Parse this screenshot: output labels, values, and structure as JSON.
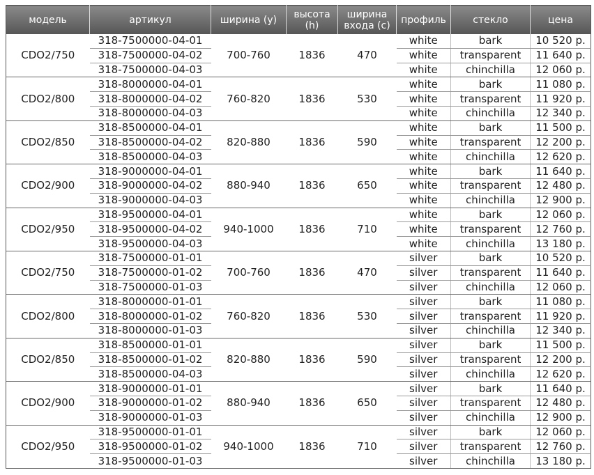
{
  "header": {
    "columns": [
      "модель",
      "артикул",
      "ширина (y)",
      "высота\n(h)",
      "ширина\nвхода (c)",
      "профиль",
      "стекло",
      "цена"
    ]
  },
  "table": {
    "groups": [
      {
        "model": "CDO2/750",
        "width": "700-760",
        "height": "1836",
        "entry": "470",
        "rows": [
          {
            "article": "318-7500000-04-01",
            "profile": "white",
            "glass": "bark",
            "price": "10 520 р."
          },
          {
            "article": "318-7500000-04-02",
            "profile": "white",
            "glass": "transparent",
            "price": "11 640 р."
          },
          {
            "article": "318-7500000-04-03",
            "profile": "white",
            "glass": "chinchilla",
            "price": "12 060 р."
          }
        ]
      },
      {
        "model": "CDO2/800",
        "width": "760-820",
        "height": "1836",
        "entry": "530",
        "rows": [
          {
            "article": "318-8000000-04-01",
            "profile": "white",
            "glass": "bark",
            "price": "11 080 р."
          },
          {
            "article": "318-8000000-04-02",
            "profile": "white",
            "glass": "transparent",
            "price": "11 920 р."
          },
          {
            "article": "318-8000000-04-03",
            "profile": "white",
            "glass": "chinchilla",
            "price": "12 340 р."
          }
        ]
      },
      {
        "model": "CDO2/850",
        "width": "820-880",
        "height": "1836",
        "entry": "590",
        "rows": [
          {
            "article": "318-8500000-04-01",
            "profile": "white",
            "glass": "bark",
            "price": "11 500 р."
          },
          {
            "article": "318-8500000-04-02",
            "profile": "white",
            "glass": "transparent",
            "price": "12 200 р."
          },
          {
            "article": "318-8500000-04-03",
            "profile": "white",
            "glass": "chinchilla",
            "price": "12 620 р."
          }
        ]
      },
      {
        "model": "CDO2/900",
        "width": "880-940",
        "height": "1836",
        "entry": "650",
        "rows": [
          {
            "article": "318-9000000-04-01",
            "profile": "white",
            "glass": "bark",
            "price": "11 640 р."
          },
          {
            "article": "318-9000000-04-02",
            "profile": "white",
            "glass": "transparent",
            "price": "12 480 р."
          },
          {
            "article": "318-9000000-04-03",
            "profile": "white",
            "glass": "chinchilla",
            "price": "12 900 р."
          }
        ]
      },
      {
        "model": "CDO2/950",
        "width": "940-1000",
        "height": "1836",
        "entry": "710",
        "rows": [
          {
            "article": "318-9500000-04-01",
            "profile": "white",
            "glass": "bark",
            "price": "12 060 р."
          },
          {
            "article": "318-9500000-04-02",
            "profile": "white",
            "glass": "transparent",
            "price": "12 760 р."
          },
          {
            "article": "318-9500000-04-03",
            "profile": "white",
            "glass": "chinchilla",
            "price": "13 180 р."
          }
        ]
      },
      {
        "model": "CDO2/750",
        "width": "700-760",
        "height": "1836",
        "entry": "470",
        "rows": [
          {
            "article": "318-7500000-01-01",
            "profile": "silver",
            "glass": "bark",
            "price": "10 520 р."
          },
          {
            "article": "318-7500000-01-02",
            "profile": "silver",
            "glass": "transparent",
            "price": "11 640 р."
          },
          {
            "article": "318-7500000-01-03",
            "profile": "silver",
            "glass": "chinchilla",
            "price": "12 060 р."
          }
        ]
      },
      {
        "model": "CDO2/800",
        "width": "760-820",
        "height": "1836",
        "entry": "530",
        "rows": [
          {
            "article": "318-8000000-01-01",
            "profile": "silver",
            "glass": "bark",
            "price": "11 080 р."
          },
          {
            "article": "318-8000000-01-02",
            "profile": "silver",
            "glass": "transparent",
            "price": "11 920 р."
          },
          {
            "article": "318-8000000-01-03",
            "profile": "silver",
            "glass": "chinchilla",
            "price": "12 340 р."
          }
        ]
      },
      {
        "model": "CDO2/850",
        "width": "820-880",
        "height": "1836",
        "entry": "590",
        "rows": [
          {
            "article": "318-8500000-01-01",
            "profile": "silver",
            "glass": "bark",
            "price": "11 500 р."
          },
          {
            "article": "318-8500000-01-02",
            "profile": "silver",
            "glass": "transparent",
            "price": "12 200 р."
          },
          {
            "article": "318-8500000-04-03",
            "profile": "silver",
            "glass": "chinchilla",
            "price": "12 620 р."
          }
        ]
      },
      {
        "model": "CDO2/900",
        "width": "880-940",
        "height": "1836",
        "entry": "650",
        "rows": [
          {
            "article": "318-9000000-01-01",
            "profile": "silver",
            "glass": "bark",
            "price": "11 640 р."
          },
          {
            "article": "318-9000000-01-02",
            "profile": "silver",
            "glass": "transparent",
            "price": "12 480 р."
          },
          {
            "article": "318-9000000-01-03",
            "profile": "silver",
            "glass": "chinchilla",
            "price": "12 900 р."
          }
        ]
      },
      {
        "model": "CDO2/950",
        "width": "940-1000",
        "height": "1836",
        "entry": "710",
        "rows": [
          {
            "article": "318-9500000-01-01",
            "profile": "silver",
            "glass": "bark",
            "price": "12 060 р."
          },
          {
            "article": "318-9500000-01-02",
            "profile": "silver",
            "glass": "transparent",
            "price": "12 760 р."
          },
          {
            "article": "318-9500000-01-03",
            "profile": "silver",
            "glass": "chinchilla",
            "price": "13 180 р."
          }
        ]
      }
    ]
  }
}
